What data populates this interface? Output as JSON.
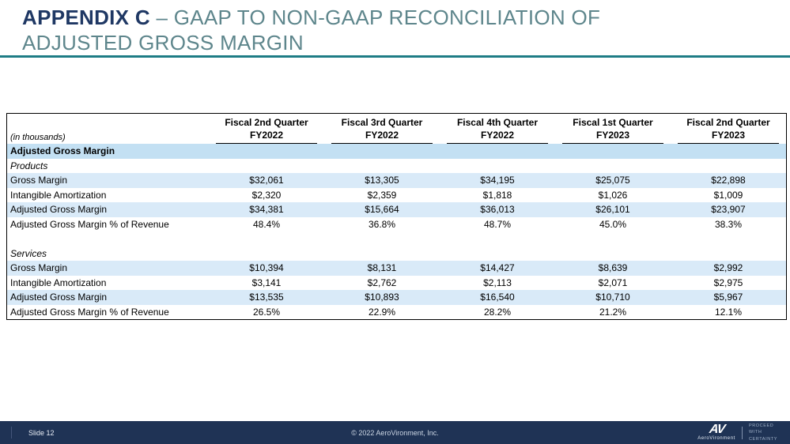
{
  "title": {
    "prefix": "APPENDIX C",
    "rest": " – GAAP TO NON-GAAP RECONCILIATION OF",
    "line2": "ADJUSTED GROSS MARGIN"
  },
  "table": {
    "unit_note": "(in thousands)",
    "col_headers": [
      {
        "line1": "Fiscal 2nd Quarter",
        "line2": "FY2022"
      },
      {
        "line1": "Fiscal 3rd Quarter",
        "line2": "FY2022"
      },
      {
        "line1": "Fiscal 4th Quarter",
        "line2": "FY2022"
      },
      {
        "line1": "Fiscal 1st Quarter",
        "line2": "FY2023"
      },
      {
        "line1": "Fiscal 2nd Quarter",
        "line2": "FY2023"
      }
    ],
    "rows": [
      {
        "label": "Adjusted Gross Margin"
      },
      {
        "label": "Products"
      },
      {
        "label": "Gross Margin",
        "cells": [
          "$32,061",
          "$13,305",
          "$34,195",
          "$25,075",
          "$22,898"
        ]
      },
      {
        "label": "Intangible Amortization",
        "cells": [
          "$2,320",
          "$2,359",
          "$1,818",
          "$1,026",
          "$1,009"
        ]
      },
      {
        "label": "Adjusted Gross Margin",
        "cells": [
          "$34,381",
          "$15,664",
          "$36,013",
          "$26,101",
          "$23,907"
        ]
      },
      {
        "label": "Adjusted Gross Margin % of Revenue",
        "cells": [
          "48.4%",
          "36.8%",
          "48.7%",
          "45.0%",
          "38.3%"
        ]
      },
      {
        "label": "Services"
      },
      {
        "label": "Gross Margin",
        "cells": [
          "$10,394",
          "$8,131",
          "$14,427",
          "$8,639",
          "$2,992"
        ]
      },
      {
        "label": "Intangible Amortization",
        "cells": [
          "$3,141",
          "$2,762",
          "$2,113",
          "$2,071",
          "$2,975"
        ]
      },
      {
        "label": "Adjusted Gross Margin",
        "cells": [
          "$13,535",
          "$10,893",
          "$16,540",
          "$10,710",
          "$5,967"
        ]
      },
      {
        "label": "Adjusted Gross Margin % of Revenue",
        "cells": [
          "26.5%",
          "22.9%",
          "28.2%",
          "21.2%",
          "12.1%"
        ]
      }
    ]
  },
  "footer": {
    "slide_number": "Slide 12",
    "copyright": "© 2022 AeroVironment, Inc.",
    "logo_text": "AV",
    "logo_name": "AeroVironment",
    "tagline_line1": "PROCEED",
    "tagline_line2": "WITH",
    "tagline_line3": "CERTAINTY"
  },
  "colors": {
    "title_navy": "#1F3864",
    "subtitle_teal": "#5E868C",
    "rule_teal": "#1E7C85",
    "band_blue": "#D9EAF8",
    "section_blue": "#C3E0F3",
    "footer_navy": "#1F3355"
  }
}
